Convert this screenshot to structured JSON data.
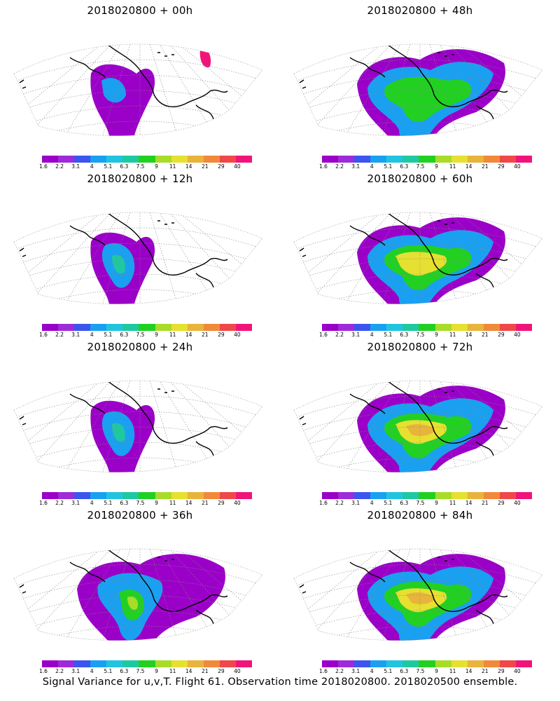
{
  "panels": [
    {
      "title": "2018020800  +  00h",
      "level": 0
    },
    {
      "title": "2018020800  +  48h",
      "level": 3
    },
    {
      "title": "2018020800  +  12h",
      "level": 1
    },
    {
      "title": "2018020800  +  60h",
      "level": 4
    },
    {
      "title": "2018020800  +  24h",
      "level": 1
    },
    {
      "title": "2018020800  +  72h",
      "level": 5
    },
    {
      "title": "2018020800  +  36h",
      "level": 2
    },
    {
      "title": "2018020800  +  84h",
      "level": 5
    }
  ],
  "colorbar": {
    "labels": [
      "1.6",
      "2.2",
      "3.1",
      "4",
      "5.1",
      "6.3",
      "7.5",
      "9",
      "11",
      "14",
      "21",
      "29",
      "40"
    ],
    "colors": [
      "#9b00c8",
      "#9f2ad8",
      "#3c55ee",
      "#1aa0f0",
      "#21c4e0",
      "#20c8a0",
      "#22d022",
      "#a8dc28",
      "#e6e030",
      "#e8b43c",
      "#f08a3a",
      "#f04848",
      "#f0147a"
    ]
  },
  "footer": {
    "caption": "Signal Variance for u,v,T. Flight 61. Observation time 2018020800. 2018020500 ensemble."
  }
}
